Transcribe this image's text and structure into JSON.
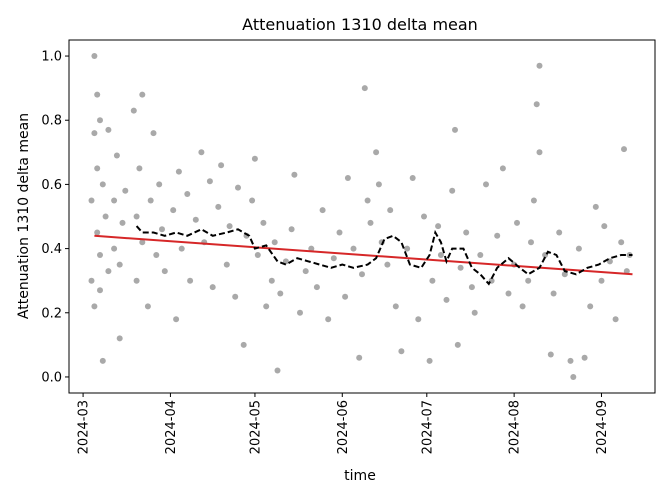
{
  "chart_data": {
    "type": "scatter",
    "title": "Attenuation 1310 delta mean",
    "xlabel": "time",
    "ylabel": "Attenuation 1310 delta mean",
    "xlim": [
      "2024-02-25",
      "2024-09-20"
    ],
    "ylim": [
      -0.05,
      1.05
    ],
    "x_ticks": [
      "2024-03",
      "2024-04",
      "2024-05",
      "2024-06",
      "2024-07",
      "2024-08",
      "2024-09"
    ],
    "y_ticks": [
      "0.0",
      "0.2",
      "0.4",
      "0.6",
      "0.8",
      "1.0"
    ],
    "grid": false,
    "colors": {
      "points": "#a9a9a9",
      "trend": "#d62728",
      "rolling": "#000000"
    },
    "series": [
      {
        "kind": "scatter",
        "points": [
          [
            "2024-03-04",
            0.3
          ],
          [
            "2024-03-04",
            0.55
          ],
          [
            "2024-03-05",
            0.76
          ],
          [
            "2024-03-05",
            1.0
          ],
          [
            "2024-03-05",
            0.22
          ],
          [
            "2024-03-06",
            0.88
          ],
          [
            "2024-03-06",
            0.65
          ],
          [
            "2024-03-06",
            0.45
          ],
          [
            "2024-03-07",
            0.8
          ],
          [
            "2024-03-07",
            0.38
          ],
          [
            "2024-03-07",
            0.27
          ],
          [
            "2024-03-08",
            0.05
          ],
          [
            "2024-03-08",
            0.6
          ],
          [
            "2024-03-09",
            0.5
          ],
          [
            "2024-03-10",
            0.33
          ],
          [
            "2024-03-10",
            0.77
          ],
          [
            "2024-03-12",
            0.55
          ],
          [
            "2024-03-12",
            0.4
          ],
          [
            "2024-03-13",
            0.69
          ],
          [
            "2024-03-14",
            0.12
          ],
          [
            "2024-03-14",
            0.35
          ],
          [
            "2024-03-15",
            0.48
          ],
          [
            "2024-03-16",
            0.58
          ],
          [
            "2024-03-19",
            0.83
          ],
          [
            "2024-03-20",
            0.3
          ],
          [
            "2024-03-20",
            0.5
          ],
          [
            "2024-03-21",
            0.65
          ],
          [
            "2024-03-22",
            0.88
          ],
          [
            "2024-03-22",
            0.42
          ],
          [
            "2024-03-24",
            0.22
          ],
          [
            "2024-03-25",
            0.55
          ],
          [
            "2024-03-26",
            0.76
          ],
          [
            "2024-03-27",
            0.38
          ],
          [
            "2024-03-28",
            0.6
          ],
          [
            "2024-03-29",
            0.46
          ],
          [
            "2024-03-30",
            0.33
          ],
          [
            "2024-04-02",
            0.52
          ],
          [
            "2024-04-03",
            0.18
          ],
          [
            "2024-04-04",
            0.64
          ],
          [
            "2024-04-05",
            0.4
          ],
          [
            "2024-04-07",
            0.57
          ],
          [
            "2024-04-08",
            0.3
          ],
          [
            "2024-04-10",
            0.49
          ],
          [
            "2024-04-12",
            0.7
          ],
          [
            "2024-04-13",
            0.42
          ],
          [
            "2024-04-15",
            0.61
          ],
          [
            "2024-04-16",
            0.28
          ],
          [
            "2024-04-18",
            0.53
          ],
          [
            "2024-04-19",
            0.66
          ],
          [
            "2024-04-21",
            0.35
          ],
          [
            "2024-04-22",
            0.47
          ],
          [
            "2024-04-24",
            0.25
          ],
          [
            "2024-04-25",
            0.59
          ],
          [
            "2024-04-27",
            0.1
          ],
          [
            "2024-04-28",
            0.44
          ],
          [
            "2024-04-30",
            0.55
          ],
          [
            "2024-05-01",
            0.68
          ],
          [
            "2024-05-02",
            0.38
          ],
          [
            "2024-05-04",
            0.48
          ],
          [
            "2024-05-05",
            0.22
          ],
          [
            "2024-05-07",
            0.3
          ],
          [
            "2024-05-08",
            0.42
          ],
          [
            "2024-05-09",
            0.02
          ],
          [
            "2024-05-10",
            0.26
          ],
          [
            "2024-05-12",
            0.36
          ],
          [
            "2024-05-14",
            0.46
          ],
          [
            "2024-05-15",
            0.63
          ],
          [
            "2024-05-17",
            0.2
          ],
          [
            "2024-05-19",
            0.33
          ],
          [
            "2024-05-21",
            0.4
          ],
          [
            "2024-05-23",
            0.28
          ],
          [
            "2024-05-25",
            0.52
          ],
          [
            "2024-05-27",
            0.18
          ],
          [
            "2024-05-29",
            0.37
          ],
          [
            "2024-05-31",
            0.45
          ],
          [
            "2024-06-02",
            0.25
          ],
          [
            "2024-06-03",
            0.62
          ],
          [
            "2024-06-05",
            0.4
          ],
          [
            "2024-06-07",
            0.06
          ],
          [
            "2024-06-08",
            0.32
          ],
          [
            "2024-06-09",
            0.9
          ],
          [
            "2024-06-10",
            0.55
          ],
          [
            "2024-06-11",
            0.48
          ],
          [
            "2024-06-13",
            0.7
          ],
          [
            "2024-06-14",
            0.6
          ],
          [
            "2024-06-15",
            0.42
          ],
          [
            "2024-06-17",
            0.35
          ],
          [
            "2024-06-18",
            0.52
          ],
          [
            "2024-06-20",
            0.22
          ],
          [
            "2024-06-22",
            0.08
          ],
          [
            "2024-06-24",
            0.4
          ],
          [
            "2024-06-26",
            0.62
          ],
          [
            "2024-06-28",
            0.18
          ],
          [
            "2024-06-30",
            0.5
          ],
          [
            "2024-07-02",
            0.05
          ],
          [
            "2024-07-03",
            0.3
          ],
          [
            "2024-07-05",
            0.47
          ],
          [
            "2024-07-06",
            0.38
          ],
          [
            "2024-07-08",
            0.24
          ],
          [
            "2024-07-10",
            0.58
          ],
          [
            "2024-07-11",
            0.77
          ],
          [
            "2024-07-12",
            0.1
          ],
          [
            "2024-07-13",
            0.34
          ],
          [
            "2024-07-15",
            0.45
          ],
          [
            "2024-07-17",
            0.28
          ],
          [
            "2024-07-18",
            0.2
          ],
          [
            "2024-07-20",
            0.38
          ],
          [
            "2024-07-22",
            0.6
          ],
          [
            "2024-07-24",
            0.3
          ],
          [
            "2024-07-26",
            0.44
          ],
          [
            "2024-07-28",
            0.65
          ],
          [
            "2024-07-30",
            0.26
          ],
          [
            "2024-08-01",
            0.35
          ],
          [
            "2024-08-02",
            0.48
          ],
          [
            "2024-08-04",
            0.22
          ],
          [
            "2024-08-06",
            0.3
          ],
          [
            "2024-08-07",
            0.42
          ],
          [
            "2024-08-08",
            0.55
          ],
          [
            "2024-08-09",
            0.85
          ],
          [
            "2024-08-10",
            0.97
          ],
          [
            "2024-08-10",
            0.7
          ],
          [
            "2024-08-12",
            0.38
          ],
          [
            "2024-08-14",
            0.07
          ],
          [
            "2024-08-15",
            0.26
          ],
          [
            "2024-08-17",
            0.45
          ],
          [
            "2024-08-19",
            0.32
          ],
          [
            "2024-08-21",
            0.05
          ],
          [
            "2024-08-22",
            0.0
          ],
          [
            "2024-08-24",
            0.4
          ],
          [
            "2024-08-26",
            0.06
          ],
          [
            "2024-08-28",
            0.22
          ],
          [
            "2024-08-30",
            0.53
          ],
          [
            "2024-09-01",
            0.3
          ],
          [
            "2024-09-02",
            0.47
          ],
          [
            "2024-09-04",
            0.36
          ],
          [
            "2024-09-06",
            0.18
          ],
          [
            "2024-09-08",
            0.42
          ],
          [
            "2024-09-09",
            0.71
          ],
          [
            "2024-09-10",
            0.33
          ],
          [
            "2024-09-11",
            0.38
          ]
        ]
      },
      {
        "kind": "trend",
        "points": [
          [
            "2024-03-05",
            0.44
          ],
          [
            "2024-09-12",
            0.32
          ]
        ]
      },
      {
        "kind": "rolling",
        "points": [
          [
            "2024-03-20",
            0.47
          ],
          [
            "2024-03-22",
            0.45
          ],
          [
            "2024-03-26",
            0.45
          ],
          [
            "2024-03-30",
            0.44
          ],
          [
            "2024-04-03",
            0.45
          ],
          [
            "2024-04-07",
            0.44
          ],
          [
            "2024-04-12",
            0.46
          ],
          [
            "2024-04-16",
            0.44
          ],
          [
            "2024-04-21",
            0.45
          ],
          [
            "2024-04-25",
            0.46
          ],
          [
            "2024-04-29",
            0.44
          ],
          [
            "2024-05-01",
            0.4
          ],
          [
            "2024-05-05",
            0.41
          ],
          [
            "2024-05-09",
            0.36
          ],
          [
            "2024-05-12",
            0.35
          ],
          [
            "2024-05-16",
            0.37
          ],
          [
            "2024-05-20",
            0.36
          ],
          [
            "2024-05-24",
            0.35
          ],
          [
            "2024-05-28",
            0.34
          ],
          [
            "2024-06-01",
            0.35
          ],
          [
            "2024-06-05",
            0.34
          ],
          [
            "2024-06-10",
            0.35
          ],
          [
            "2024-06-13",
            0.37
          ],
          [
            "2024-06-16",
            0.43
          ],
          [
            "2024-06-19",
            0.44
          ],
          [
            "2024-06-22",
            0.42
          ],
          [
            "2024-06-25",
            0.35
          ],
          [
            "2024-06-29",
            0.34
          ],
          [
            "2024-07-02",
            0.38
          ],
          [
            "2024-07-04",
            0.45
          ],
          [
            "2024-07-06",
            0.42
          ],
          [
            "2024-07-08",
            0.36
          ],
          [
            "2024-07-10",
            0.4
          ],
          [
            "2024-07-14",
            0.4
          ],
          [
            "2024-07-17",
            0.34
          ],
          [
            "2024-07-20",
            0.32
          ],
          [
            "2024-07-23",
            0.29
          ],
          [
            "2024-07-26",
            0.34
          ],
          [
            "2024-07-30",
            0.37
          ],
          [
            "2024-08-03",
            0.34
          ],
          [
            "2024-08-06",
            0.32
          ],
          [
            "2024-08-10",
            0.34
          ],
          [
            "2024-08-13",
            0.39
          ],
          [
            "2024-08-16",
            0.38
          ],
          [
            "2024-08-19",
            0.33
          ],
          [
            "2024-08-23",
            0.32
          ],
          [
            "2024-08-27",
            0.34
          ],
          [
            "2024-08-31",
            0.35
          ],
          [
            "2024-09-04",
            0.37
          ],
          [
            "2024-09-08",
            0.38
          ],
          [
            "2024-09-12",
            0.38
          ]
        ]
      }
    ]
  }
}
